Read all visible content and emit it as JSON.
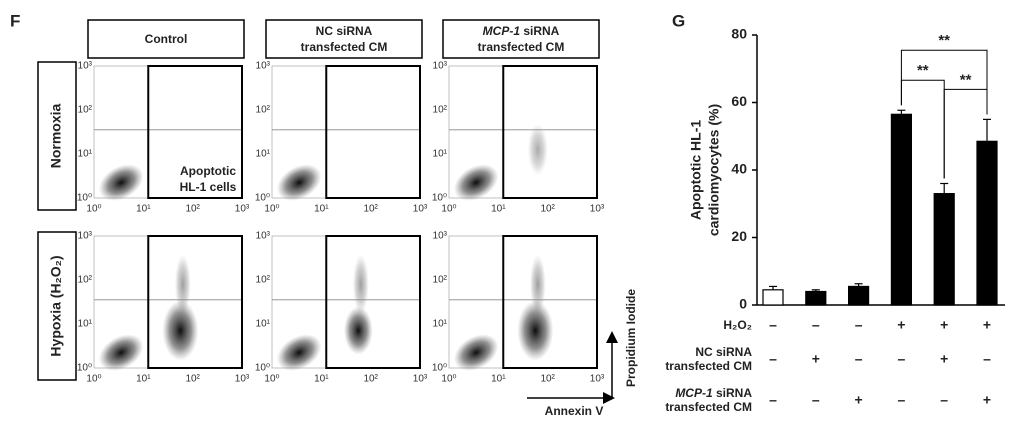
{
  "panel_f": {
    "label": "F",
    "columns": [
      "Control",
      [
        "NC siRNA",
        "transfected CM"
      ],
      [
        {
          "italic": "MCP-1",
          "text": " siRNA"
        },
        "transfected CM"
      ]
    ],
    "rows": [
      "Normoxia",
      "Hypoxia (H₂O₂)"
    ],
    "axis_ticks": [
      "10⁰",
      "10¹",
      "10²",
      "10³"
    ],
    "annotation": [
      "Apoptotic",
      "HL-1 cells"
    ],
    "x_axis": "Annexin V",
    "y_axis": "Propidium Iodide"
  },
  "chart_data": {
    "type": "bar",
    "label": "G",
    "ylabel": [
      "Apoptotic HL-1",
      "cardiomyocytes (%)"
    ],
    "categories": [
      null,
      null,
      null,
      null,
      null,
      null
    ],
    "values": [
      4.5,
      4,
      5.5,
      56.5,
      33,
      48.5
    ],
    "errors": [
      1,
      0.5,
      0.8,
      1.2,
      3,
      6.5
    ],
    "colors": [
      "#ffffff",
      "#000000",
      "#000000",
      "#000000",
      "#000000",
      "#000000"
    ],
    "ylim": [
      0,
      80
    ],
    "yticks": [
      0,
      20,
      40,
      60,
      80
    ],
    "significance": [
      {
        "between": [
          3,
          4
        ],
        "label": "**"
      },
      {
        "between": [
          4,
          5
        ],
        "label": "**"
      },
      {
        "between": [
          3,
          5
        ],
        "label": "**"
      }
    ],
    "conditions": [
      {
        "label": [
          "H₂O₂"
        ],
        "signs": [
          "–",
          "–",
          "–",
          "+",
          "+",
          "+"
        ]
      },
      {
        "label": [
          "NC siRNA",
          "transfected CM"
        ],
        "signs": [
          "–",
          "+",
          "–",
          "–",
          "+",
          "–"
        ]
      },
      {
        "label": [
          {
            "italic": "MCP-1",
            "text": " siRNA"
          },
          "transfected CM"
        ],
        "signs": [
          "–",
          "–",
          "+",
          "–",
          "–",
          "+"
        ]
      }
    ]
  }
}
